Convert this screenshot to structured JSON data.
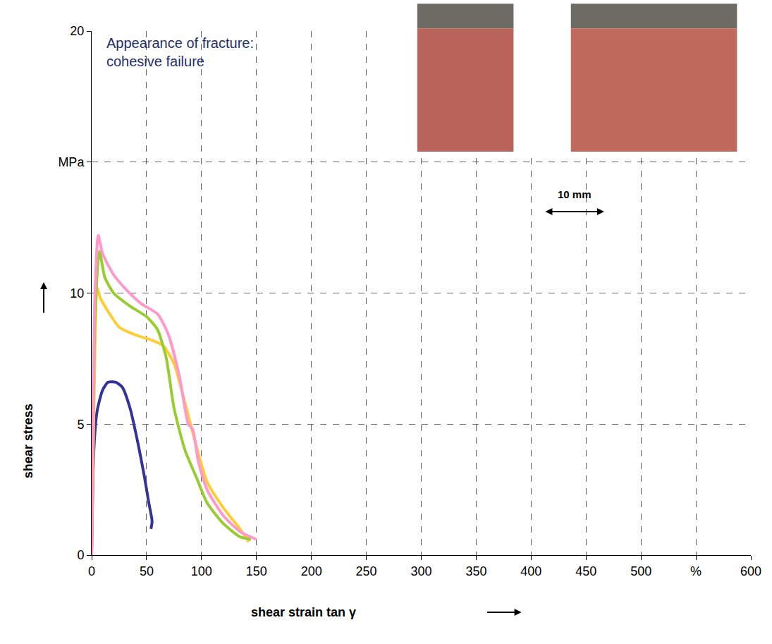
{
  "chart_data": {
    "type": "line",
    "x_label": "shear strain tan γ",
    "y_label": "shear stress",
    "xlim": [
      0,
      600
    ],
    "xticks": [
      0,
      50,
      100,
      150,
      200,
      250,
      300,
      350,
      400,
      450,
      500,
      {
        "value": 550,
        "label": "%"
      },
      600
    ],
    "ylim": [
      0,
      20
    ],
    "yticks": [
      0,
      5,
      10,
      {
        "value": 15,
        "label": "MPa"
      },
      20
    ],
    "grid": true,
    "line_style": "solid",
    "annotations": [
      {
        "text": [
          "Appearance of fracture:",
          "cohesive failure"
        ]
      },
      {
        "text": [
          "10 mm"
        ]
      }
    ],
    "series": [
      {
        "color": "#333399",
        "x": [
          0,
          2,
          5,
          10,
          15,
          22,
          28,
          35,
          42,
          48,
          52,
          55,
          54
        ],
        "values": [
          0,
          4,
          5.5,
          6.3,
          6.6,
          6.6,
          6.4,
          5.6,
          4.3,
          3.0,
          2.0,
          1.3,
          1.0
        ]
      },
      {
        "color": "#ffcc33",
        "x": [
          0,
          3,
          5,
          8,
          15,
          25,
          40,
          55,
          65,
          75,
          85,
          95,
          105,
          120,
          135,
          143
        ],
        "values": [
          0,
          8,
          10.2,
          9.8,
          9.3,
          8.7,
          8.4,
          8.2,
          8.0,
          7.3,
          5.8,
          4.2,
          2.8,
          1.8,
          1.0,
          0.5
        ]
      },
      {
        "color": "#99cc33",
        "x": [
          0,
          3,
          7,
          12,
          20,
          35,
          50,
          60,
          68,
          75,
          85,
          95,
          105,
          120,
          135,
          145
        ],
        "values": [
          0,
          9,
          11.6,
          10.6,
          10,
          9.5,
          9.1,
          8.6,
          7.5,
          5.6,
          4,
          3,
          2,
          1.2,
          0.7,
          0.6
        ]
      },
      {
        "color": "#ff99cc",
        "x": [
          0,
          3,
          6,
          10,
          20,
          30,
          45,
          60,
          70,
          80,
          88,
          92,
          97,
          105,
          120,
          135,
          150
        ],
        "values": [
          0,
          10,
          12.2,
          11.5,
          10.7,
          10.2,
          9.6,
          9.2,
          8.4,
          6.8,
          5,
          4.8,
          3.6,
          2.5,
          1.5,
          0.9,
          0.6
        ]
      }
    ]
  }
}
